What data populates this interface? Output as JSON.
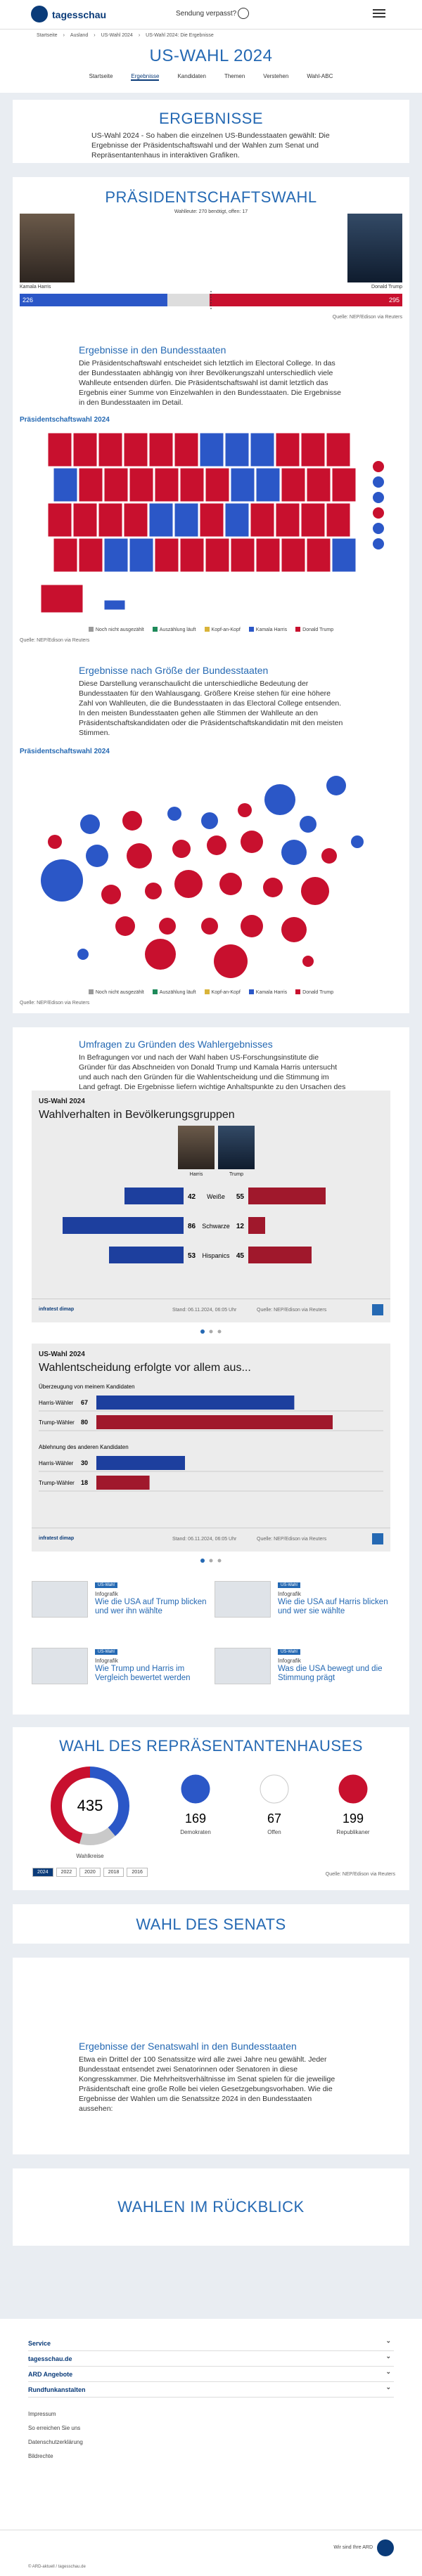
{
  "header": {
    "logo": "tagesschau",
    "search": "Sendung verpasst?"
  },
  "breadcrumb": [
    "Startseite",
    "Ausland",
    "US-Wahl 2024",
    "US-Wahl 2024: Die Ergebnisse"
  ],
  "page_title": "US-WAHL 2024",
  "nav": [
    "Startseite",
    "Ergebnisse",
    "Kandidaten",
    "Themen",
    "Verstehen",
    "Wahl-ABC"
  ],
  "results_intro": {
    "heading": "ERGEBNISSE",
    "text": "US-Wahl 2024 - So haben die einzelnen US-Bundesstaaten gewählt: Die Ergebnisse der Präsidentschaftswahl und der Wahlen zum Senat und Repräsentantenhaus in interaktiven Grafiken."
  },
  "president": {
    "heading": "PRÄSIDENTSCHAFTSWAHL",
    "subtitle": "Wahlleute: 270 benötigt, offen: 17",
    "candidates": [
      {
        "name": "Kamala Harris",
        "electors": 226,
        "color": "#2b57c7"
      },
      {
        "name": "Donald Trump",
        "electors": 295,
        "color": "#c8102e"
      }
    ],
    "source": "Quelle: NEP/Edison via Reuters"
  },
  "states": {
    "heading": "Ergebnisse in den Bundesstaaten",
    "text": "Die Präsidentschaftswahl entscheidet sich letztlich im Electoral College. In das der Bundesstaaten abhängig von ihrer Bevölkerungszahl unterschiedlich viele Wahlleute entsenden dürfen. Die Präsidentschaftswahl ist damit letztlich das Ergebnis einer Summe von Einzelwahlen in den Bundesstaaten. Die Ergebnisse in den Bundesstaaten im Detail.",
    "map_title": "Präsidentschaftswahl 2024",
    "legend": [
      "Noch nicht ausgezählt",
      "Auszählung läuft",
      "Kopf-an-Kopf",
      "Kamala Harris",
      "Donald Trump"
    ],
    "source": "Quelle: NEP/Edison via Reuters"
  },
  "size": {
    "heading": "Ergebnisse nach Größe der Bundesstaaten",
    "text": "Diese Darstellung veranschaulicht die unterschiedliche Bedeutung der Bundesstaaten für den Wahlausgang. Größere Kreise stehen für eine höhere Zahl von Wahlleuten, die die Bundesstaaten in das Electoral College entsenden. In den meisten Bundesstaaten gehen alle Stimmen der Wahlleute an den Präsidentschaftskandidaten oder die Präsidentschaftskandidatin mit den meisten Stimmen.",
    "map_title": "Präsidentschaftswahl 2024",
    "legend": [
      "Noch nicht ausgezählt",
      "Auszählung läuft",
      "Kopf-an-Kopf",
      "Kamala Harris",
      "Donald Trump"
    ],
    "source": "Quelle: NEP/Edison via Reuters"
  },
  "survey": {
    "heading": "Umfragen zu Gründen des Wahlergebnisses",
    "text": "In Befragungen vor und nach der Wahl haben US-Forschungsinstitute die Gründer für das Abschneiden von Donald Trump und Kamala Harris untersucht und auch nach den Gründen für die Wahlentscheidung und die Stimmung im Land gefragt. Die Ergebnisse liefern wichtige Anhaltspunkte zu den Ursachen des Ergebnisses und zum Wahlverhalten der verschiedenen Bevölkerungsgruppen."
  },
  "chart1": {
    "label": "US-Wahl 2024",
    "title": "Wahlverhalten in Bevölkerungsgruppen",
    "candidates": [
      "Harris",
      "Trump"
    ],
    "rows": [
      {
        "group": "Weiße",
        "values": [
          42,
          55
        ]
      },
      {
        "group": "Schwarze",
        "values": [
          86,
          12
        ]
      },
      {
        "group": "Hispanics",
        "values": [
          53,
          45
        ]
      }
    ],
    "brand": "infratest dimap",
    "stand": "Stand: 06.11.2024, 06:05 Uhr",
    "source": "Quelle: NEP/Edison via Reuters"
  },
  "chart2": {
    "label": "US-Wahl 2024",
    "title": "Wahlentscheidung erfolgte vor allem aus...",
    "groups": [
      {
        "heading": "Überzeugung von meinem Kandidaten",
        "rows": [
          {
            "name": "Harris-Wähler",
            "value": 67
          },
          {
            "name": "Trump-Wähler",
            "value": 80
          }
        ]
      },
      {
        "heading": "Ablehnung des anderen Kandidaten",
        "rows": [
          {
            "name": "Harris-Wähler",
            "value": 30
          },
          {
            "name": "Trump-Wähler",
            "value": 18
          }
        ]
      }
    ],
    "brand": "infratest dimap",
    "stand": "Stand: 06.11.2024, 06:05 Uhr",
    "source": "Quelle: NEP/Edison via Reuters"
  },
  "teasers": [
    {
      "tag": "US-Wahl",
      "kicker": "Infografik",
      "title": "Wie die USA auf Trump blicken und wer ihn wählte"
    },
    {
      "tag": "US-Wahl",
      "kicker": "Infografik",
      "title": "Wie die USA auf Harris blicken und wer sie wählte"
    },
    {
      "tag": "US-Wahl",
      "kicker": "Infografik",
      "title": "Wie Trump und Harris im Vergleich bewertet werden"
    },
    {
      "tag": "US-Wahl",
      "kicker": "Infografik",
      "title": "Was die USA bewegt und die Stimmung prägt"
    }
  ],
  "house": {
    "heading": "WAHL DES REPRÄSENTANTENHAUSES",
    "total": 435,
    "total_label": "Wahlkreise",
    "parties": [
      {
        "name": "Demokraten",
        "seats": 169,
        "color": "#2b57c7"
      },
      {
        "name": "Offen",
        "seats": 67,
        "color": "#c9c9c9"
      },
      {
        "name": "Republikaner",
        "seats": 199,
        "color": "#c8102e"
      }
    ],
    "years": [
      "2024",
      "2022",
      "2020",
      "2018",
      "2016"
    ],
    "source": "Quelle: NEP/Edison via Reuters"
  },
  "senate": {
    "heading": "WAHL DES SENATS",
    "sub_heading": "Ergebnisse der Senatswahl in den Bundesstaaten",
    "text": "Etwa ein Drittel der 100 Senatssitze wird alle zwei Jahre neu gewählt. Jeder Bundesstaat entsendet zwei Senatorinnen oder Senatoren in diese Kongresskammer. Die Mehrheitsverhältnisse im Senat spielen für die jeweilige Präsidentschaft eine große Rolle bei vielen Gesetzgebungsvorhaben. Wie die Ergebnisse der Wahlen um die Senatssitze 2024 in den Bundesstaaten aussehen:"
  },
  "review": {
    "heading": "WAHLEN IM RÜCKBLICK"
  },
  "footer": {
    "menus": [
      "Service",
      "tagesschau.de",
      "ARD Angebote",
      "Rundfunkanstalten"
    ],
    "links": [
      "Impressum",
      "So erreichen Sie uns",
      "Datenschutzerklärung",
      "Bildrechte"
    ],
    "copyright": "© ARD-aktuell / tagesschau.de",
    "ard": "Wir sind Ihre ARD"
  }
}
